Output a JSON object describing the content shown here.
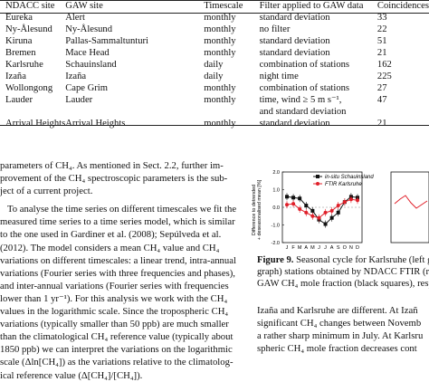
{
  "table": {
    "headers": [
      "NDACC site",
      "GAW site",
      "Timescale",
      "Filter applied to GAW data",
      "Coincidences"
    ],
    "rows": [
      [
        "Eureka",
        "Alert",
        "monthly",
        "standard deviation",
        "33"
      ],
      [
        "Ny-Ålesund",
        "Ny-Ålesund",
        "monthly",
        "no filter",
        "22"
      ],
      [
        "Kiruna",
        "Pallas-Sammaltunturi",
        "monthly",
        "standard deviation",
        "51"
      ],
      [
        "Bremen",
        "Mace Head",
        "monthly",
        "standard deviation",
        "21"
      ],
      [
        "Karlsruhe",
        "Schauinsland",
        "daily",
        "combination of stations",
        "162"
      ],
      [
        "Izaña",
        "Izaña",
        "daily",
        "night time",
        "225"
      ],
      [
        "Wollongong",
        "Cape Grim",
        "monthly",
        "combination of stations",
        "27"
      ],
      [
        "Lauder",
        "Lauder",
        "monthly",
        "time, wind ≥ 5 m s⁻¹,",
        "47"
      ],
      [
        "",
        "",
        "",
        "and standard deviation",
        ""
      ],
      [
        "Arrival Heights",
        "Arrival Heights",
        "monthly",
        "standard deviation",
        "21"
      ]
    ]
  },
  "left_text": {
    "lines": [
      "parameters of CH₄. As mentioned in Sect. 2.2, further im-",
      "provement of the CH₄ spectroscopic parameters is the sub-",
      "ject of a current project.",
      "To analyse the time series on different timescales we fit the",
      "measured time series to a time series model, which is similar",
      "to the one used in Gardiner et al. (2008); Sepúlveda et al.",
      "(2012). The model considers a mean CH₄ value and CH₄",
      "variations on different timescales: a linear trend, intra-annual",
      "variations (Fourier series with three frequencies and phases),",
      "and inter-annual variations (Fourier series with frequencies",
      "lower than 1 yr⁻¹). For this analysis we work with the CH₄",
      "values in the logarithmic scale. Since the tropospheric CH₄",
      "variations (typically smaller than 50 ppb) are much smaller",
      "than the climatological CH₄ reference value (typically about",
      "1850 ppb) we can interpret the variations on the logarithmic",
      "scale (Δln[CH₄]) as the variations relative to the climatolog-",
      "ical reference value (Δ[CH₄]/[CH₄])."
    ]
  },
  "figure": {
    "ylabel_line1": "Difference to detrended",
    "ylabel_line2": "+ deseasonalised mean [%]",
    "yticks": [
      "2.0",
      "1.0",
      "0.0",
      "-1.0",
      "-2.0"
    ],
    "legend": [
      "in-situ Schauinsland",
      "FTIR Karlsruhe"
    ],
    "chart_data": {
      "type": "line",
      "categories": [
        "J",
        "F",
        "M",
        "A",
        "M",
        "J",
        "J",
        "A",
        "S",
        "O",
        "N",
        "D"
      ],
      "ylim": [
        -2.0,
        2.0
      ],
      "series": [
        {
          "name": "in-situ Schauinsland",
          "color": "#111111",
          "values": [
            0.6,
            0.55,
            0.5,
            0.1,
            -0.2,
            -0.7,
            -0.95,
            -0.6,
            -0.3,
            0.3,
            0.6,
            0.55
          ]
        },
        {
          "name": "FTIR Karlsruhe",
          "color": "#e0202a",
          "values": [
            0.15,
            0.2,
            -0.1,
            -0.3,
            -0.5,
            -0.6,
            -0.3,
            -0.2,
            0.1,
            0.3,
            0.45,
            0.4
          ]
        }
      ]
    }
  },
  "caption": {
    "label": "Figure 9.",
    "lines": [
      "Seasonal cycle for Karlsruhe (left gra",
      "graph) stations obtained by NDACC FTIR (re",
      "GAW CH₄ mole fraction (black squares), respe"
    ]
  },
  "right_text": {
    "lines": [
      "Izaña and Karlsruhe are different. At Izañ",
      "significant CH₄ changes between Novemb",
      "a rather sharp minimum in July. At Karlsru",
      "spheric CH₄ mole fraction decreases cont"
    ]
  }
}
